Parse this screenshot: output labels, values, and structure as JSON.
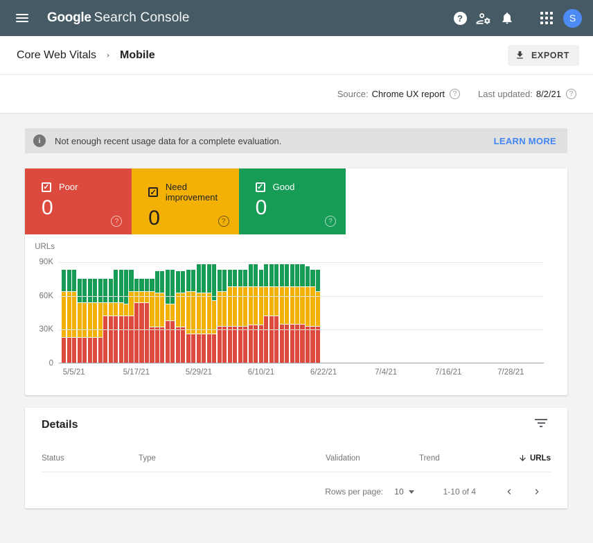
{
  "app_bar": {
    "product_bold": "Google",
    "product_rest": "Search Console",
    "avatar_letter": "S",
    "help_glyph": "?",
    "colors": {
      "bar": "#455a64",
      "avatar": "#4d8bf5"
    },
    "icons": [
      "menu-icon",
      "help-icon",
      "manage-users-icon",
      "notifications-icon",
      "apps-grid-icon",
      "avatar"
    ]
  },
  "breadcrumb": {
    "parent": "Core Web Vitals",
    "current": "Mobile"
  },
  "toolbar": {
    "export_label": "EXPORT"
  },
  "source_bar": {
    "source_label": "Source:",
    "source_value": "Chrome UX report",
    "updated_label": "Last updated:",
    "updated_value": "8/2/21",
    "help_glyph": "?"
  },
  "banner": {
    "info_glyph": "i",
    "text": "Not enough recent usage data for a complete evaluation.",
    "action_label": "LEARN MORE",
    "action_color": "#4285f4",
    "bg_color": "#e0e0e0"
  },
  "status_cards": [
    {
      "label": "Poor",
      "value": "0",
      "color": "#db4a3d",
      "text_color": "#ffffff",
      "checked": true,
      "help_glyph": "?"
    },
    {
      "label": "Need improvement",
      "value": "0",
      "color": "#f2b104",
      "text_color": "#212121",
      "checked": true,
      "help_glyph": "?"
    },
    {
      "label": "Good",
      "value": "0",
      "color": "#169c55",
      "text_color": "#ffffff",
      "checked": true,
      "help_glyph": "?"
    }
  ],
  "chart_data": {
    "type": "bar",
    "stacked": true,
    "ylabel": "URLs",
    "unit": "thousands of URLs",
    "ylim": [
      0,
      90
    ],
    "yticks": [
      {
        "label": "0",
        "value": 0
      },
      {
        "label": "30K",
        "value": 30
      },
      {
        "label": "60K",
        "value": 60
      },
      {
        "label": "90K",
        "value": 90
      }
    ],
    "xticks": [
      "5/5/21",
      "5/17/21",
      "5/29/21",
      "6/10/21",
      "6/22/21",
      "7/4/21",
      "7/16/21",
      "7/28/21"
    ],
    "grid": true,
    "legend_position": "none",
    "dates": [
      "5/3/21",
      "5/4/21",
      "5/5/21",
      "5/6/21",
      "5/7/21",
      "5/8/21",
      "5/9/21",
      "5/10/21",
      "5/11/21",
      "5/12/21",
      "5/13/21",
      "5/14/21",
      "5/15/21",
      "5/16/21",
      "5/17/21",
      "5/18/21",
      "5/19/21",
      "5/20/21",
      "5/21/21",
      "5/22/21",
      "5/23/21",
      "5/24/21",
      "5/25/21",
      "5/26/21",
      "5/27/21",
      "5/28/21",
      "5/29/21",
      "5/30/21",
      "5/31/21",
      "6/1/21",
      "6/2/21",
      "6/3/21",
      "6/4/21",
      "6/5/21",
      "6/6/21",
      "6/7/21",
      "6/8/21",
      "6/9/21",
      "6/10/21",
      "6/11/21",
      "6/12/21",
      "6/13/21",
      "6/14/21",
      "6/15/21",
      "6/16/21",
      "6/17/21",
      "6/18/21",
      "6/19/21",
      "6/20/21",
      "6/21/21"
    ],
    "series": [
      {
        "name": "Poor",
        "color": "#db4a3d",
        "values": [
          23,
          23,
          23,
          23,
          23,
          23,
          23,
          23,
          42,
          42,
          42,
          42,
          42,
          42,
          54,
          54,
          54,
          32,
          32,
          32,
          38,
          38,
          32,
          32,
          26,
          26,
          26,
          26,
          26,
          26,
          33,
          33,
          33,
          33,
          33,
          33,
          34,
          34,
          34,
          42,
          42,
          42,
          35,
          35,
          35,
          35,
          35,
          33,
          33,
          33
        ]
      },
      {
        "name": "Need improvement",
        "color": "#f2b104",
        "values": [
          41,
          41,
          41,
          31,
          31,
          31,
          31,
          31,
          12,
          12,
          12,
          12,
          11,
          22,
          10,
          10,
          10,
          32,
          31,
          31,
          15,
          15,
          31,
          31,
          38,
          38,
          37,
          37,
          37,
          30,
          31,
          31,
          35,
          35,
          35,
          35,
          34,
          34,
          34,
          26,
          26,
          26,
          33,
          33,
          33,
          33,
          33,
          35,
          35,
          31
        ]
      },
      {
        "name": "Good",
        "color": "#169c55",
        "values": [
          19,
          19,
          19,
          21,
          21,
          21,
          21,
          21,
          21,
          21,
          29,
          29,
          30,
          19,
          11,
          11,
          11,
          11,
          19,
          19,
          30,
          30,
          19,
          19,
          19,
          19,
          25,
          25,
          25,
          32,
          19,
          19,
          15,
          15,
          15,
          15,
          20,
          20,
          15,
          20,
          20,
          20,
          20,
          20,
          20,
          20,
          20,
          18,
          15,
          19
        ]
      }
    ]
  },
  "details": {
    "title": "Details",
    "columns": {
      "status": "Status",
      "type": "Type",
      "validation": "Validation",
      "trend": "Trend",
      "urls": "URLs"
    },
    "rows": [],
    "pagination": {
      "rows_per_page_label": "Rows per page:",
      "rows_per_page_value": "10",
      "range": "1-10 of 4"
    }
  }
}
